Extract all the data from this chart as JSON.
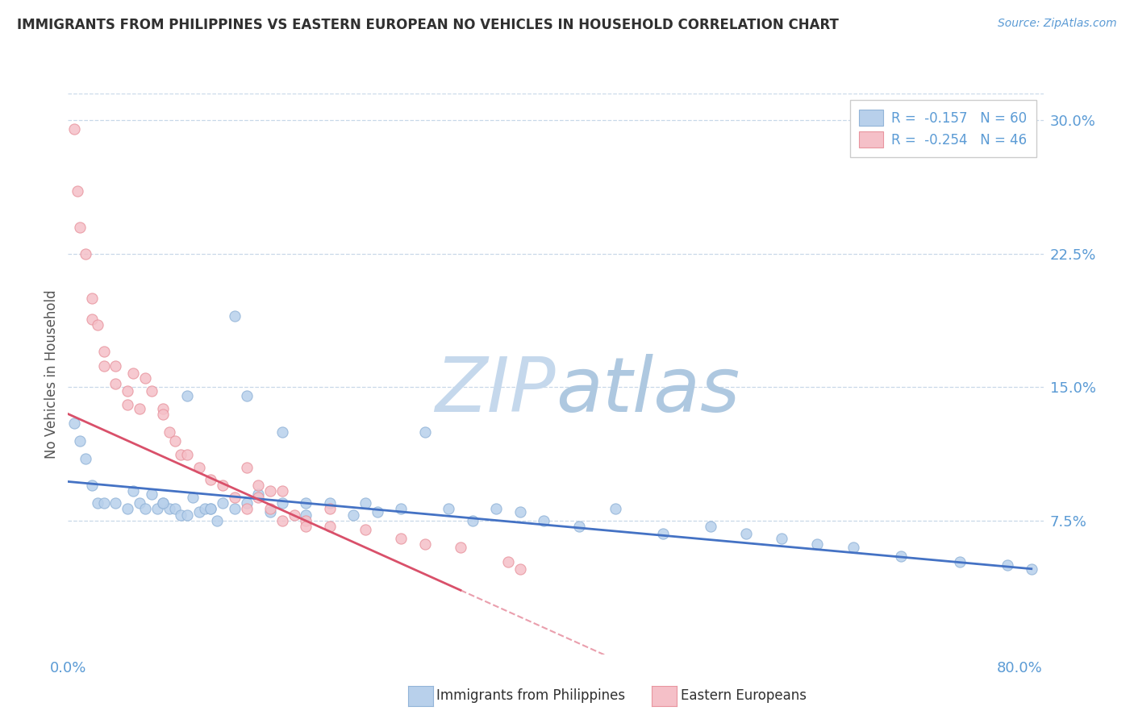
{
  "title": "IMMIGRANTS FROM PHILIPPINES VS EASTERN EUROPEAN NO VEHICLES IN HOUSEHOLD CORRELATION CHART",
  "source": "Source: ZipAtlas.com",
  "ylabel": "No Vehicles in Household",
  "yticks": [
    0.0,
    0.075,
    0.15,
    0.225,
    0.3
  ],
  "ytick_labels": [
    "",
    "7.5%",
    "15.0%",
    "22.5%",
    "30.0%"
  ],
  "xlim": [
    0.0,
    0.82
  ],
  "ylim": [
    0.0,
    0.315
  ],
  "legend_entries": [
    {
      "label": "R =  -0.157   N = 60",
      "facecolor": "#b8d0eb",
      "edgecolor": "#92b4d8"
    },
    {
      "label": "R =  -0.254   N = 46",
      "facecolor": "#f5c0c8",
      "edgecolor": "#e8959f"
    }
  ],
  "series1_color": "#b8d0eb",
  "series2_color": "#f5c0c8",
  "series1_edge": "#92b4d8",
  "series2_edge": "#e8959f",
  "trendline1_color": "#4472c4",
  "trendline2_color": "#d9506a",
  "axis_color": "#5b9bd5",
  "watermark_color": "#ccdaea",
  "grid_color": "#c8d8e8",
  "series1_x": [
    0.005,
    0.01,
    0.015,
    0.02,
    0.025,
    0.03,
    0.04,
    0.05,
    0.055,
    0.06,
    0.065,
    0.07,
    0.075,
    0.08,
    0.085,
    0.09,
    0.095,
    0.1,
    0.105,
    0.11,
    0.115,
    0.12,
    0.125,
    0.13,
    0.14,
    0.15,
    0.16,
    0.17,
    0.18,
    0.2,
    0.22,
    0.24,
    0.26,
    0.28,
    0.3,
    0.32,
    0.34,
    0.36,
    0.38,
    0.4,
    0.43,
    0.46,
    0.5,
    0.54,
    0.57,
    0.6,
    0.63,
    0.66,
    0.7,
    0.75,
    0.79,
    0.81,
    0.2,
    0.25,
    0.14,
    0.15,
    0.18,
    0.12,
    0.1,
    0.08
  ],
  "series1_y": [
    0.13,
    0.12,
    0.11,
    0.095,
    0.085,
    0.085,
    0.085,
    0.082,
    0.092,
    0.085,
    0.082,
    0.09,
    0.082,
    0.085,
    0.082,
    0.082,
    0.078,
    0.078,
    0.088,
    0.08,
    0.082,
    0.082,
    0.075,
    0.085,
    0.082,
    0.085,
    0.09,
    0.08,
    0.125,
    0.078,
    0.085,
    0.078,
    0.08,
    0.082,
    0.125,
    0.082,
    0.075,
    0.082,
    0.08,
    0.075,
    0.072,
    0.082,
    0.068,
    0.072,
    0.068,
    0.065,
    0.062,
    0.06,
    0.055,
    0.052,
    0.05,
    0.048,
    0.085,
    0.085,
    0.19,
    0.145,
    0.085,
    0.082,
    0.145,
    0.085
  ],
  "series2_x": [
    0.005,
    0.008,
    0.01,
    0.015,
    0.02,
    0.02,
    0.025,
    0.03,
    0.03,
    0.04,
    0.04,
    0.05,
    0.05,
    0.055,
    0.06,
    0.065,
    0.07,
    0.08,
    0.085,
    0.09,
    0.095,
    0.1,
    0.11,
    0.12,
    0.13,
    0.14,
    0.15,
    0.16,
    0.17,
    0.18,
    0.2,
    0.22,
    0.25,
    0.28,
    0.3,
    0.33,
    0.37,
    0.38,
    0.15,
    0.16,
    0.17,
    0.18,
    0.19,
    0.2,
    0.22,
    0.08
  ],
  "series2_y": [
    0.295,
    0.26,
    0.24,
    0.225,
    0.2,
    0.188,
    0.185,
    0.17,
    0.162,
    0.162,
    0.152,
    0.148,
    0.14,
    0.158,
    0.138,
    0.155,
    0.148,
    0.138,
    0.125,
    0.12,
    0.112,
    0.112,
    0.105,
    0.098,
    0.095,
    0.088,
    0.082,
    0.088,
    0.082,
    0.075,
    0.075,
    0.072,
    0.07,
    0.065,
    0.062,
    0.06,
    0.052,
    0.048,
    0.105,
    0.095,
    0.092,
    0.092,
    0.078,
    0.072,
    0.082,
    0.135
  ],
  "trendline1_x_start": 0.0,
  "trendline1_x_end": 0.81,
  "trendline1_y_start": 0.097,
  "trendline1_y_end": 0.048,
  "trendline2_solid_x_start": 0.0,
  "trendline2_solid_x_end": 0.33,
  "trendline2_y_start": 0.135,
  "trendline2_y_end": 0.036,
  "trendline2_dash_x_start": 0.33,
  "trendline2_dash_x_end": 0.5,
  "trendline2_dash_y_start": 0.036,
  "trendline2_dash_y_end": -0.015
}
